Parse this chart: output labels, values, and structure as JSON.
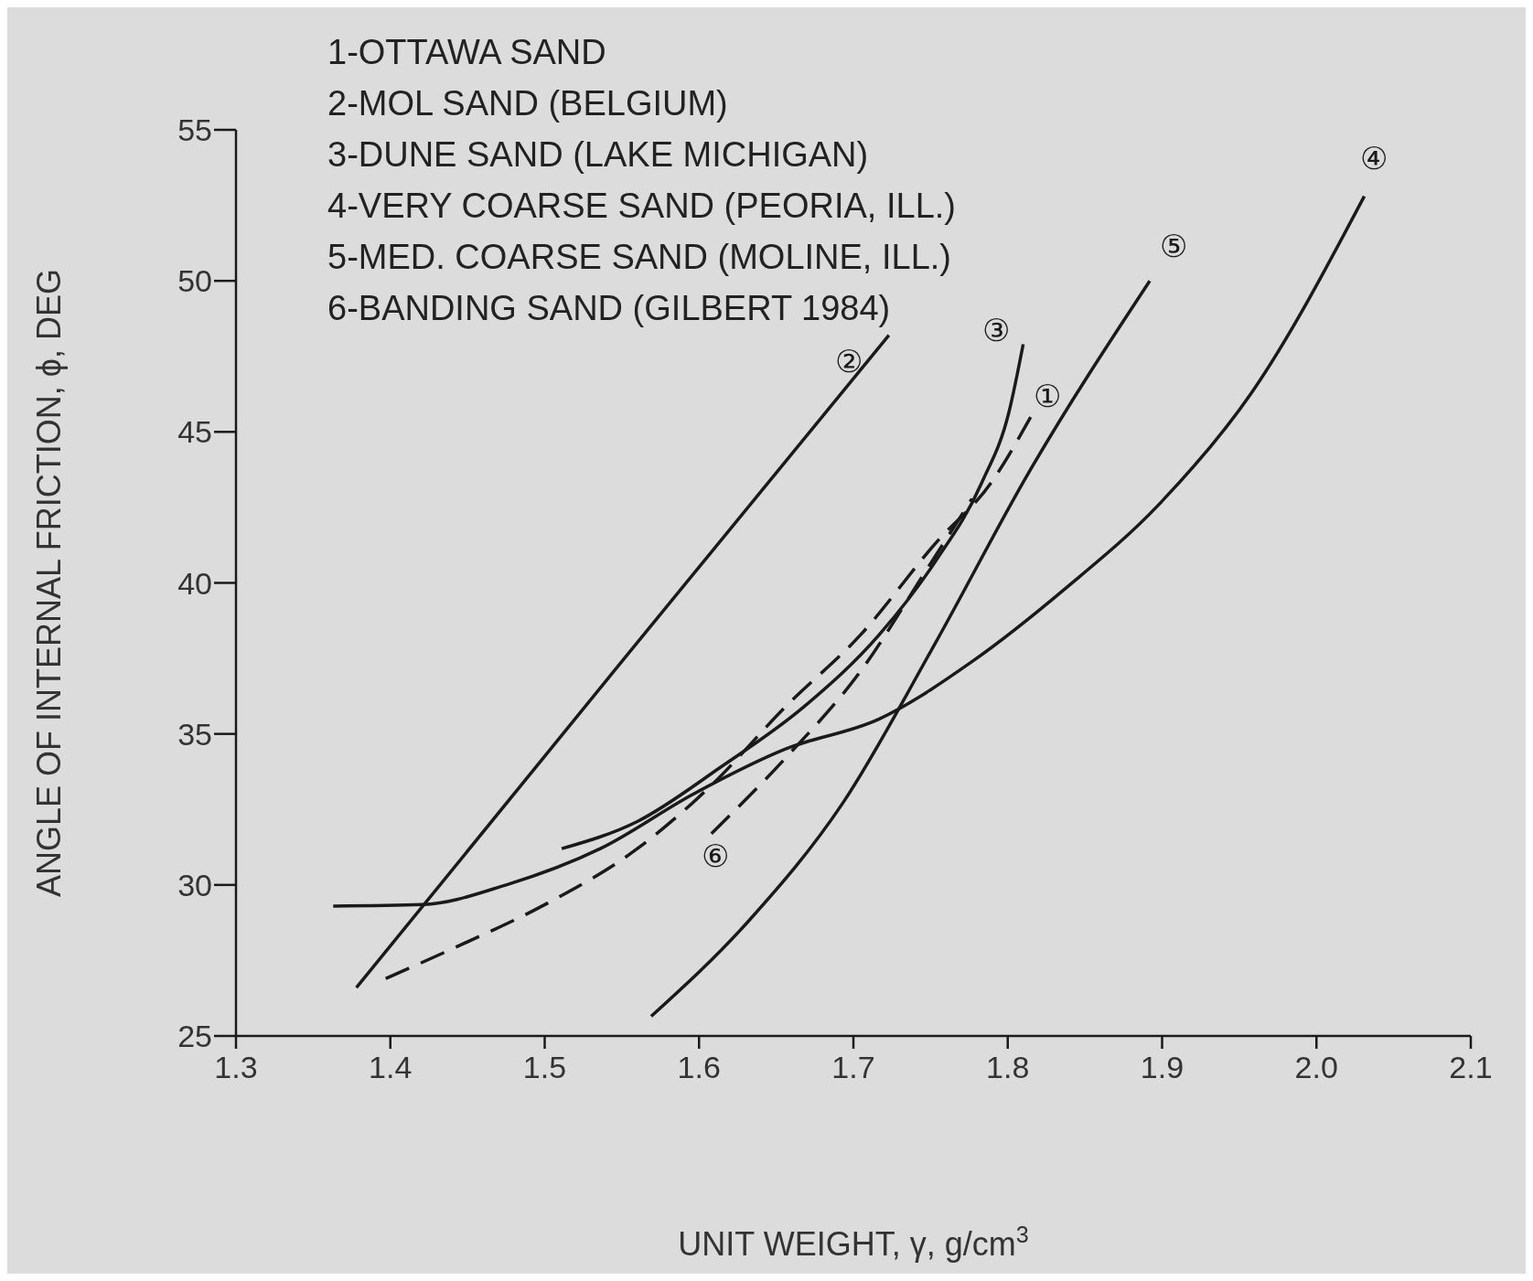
{
  "chart_data": {
    "type": "line",
    "xlabel": "UNIT WEIGHT, γ, g/cm$^{3}$",
    "ylabel": "ANGLE OF INTERNAL FRICTION, ϕ, DEG",
    "annotations": [
      "1-OTTAWA SAND",
      "2-MOL SAND (BELGIUM)",
      "3-DUNE SAND (LAKE MICHIGAN)",
      "4-VERY COARSE SAND (PEORIA, ILL.)",
      "5-MED. COARSE SAND (MOLINE, ILL.)",
      "6-BANDING SAND (GILBERT 1984)"
    ],
    "xlim": [
      1.3,
      2.1
    ],
    "xticks": [
      1.3,
      1.4,
      1.5,
      1.6,
      1.7,
      1.8,
      1.9,
      {
        "value": 2,
        "label": "2.0"
      },
      2.1
    ],
    "ylim": [
      25,
      55
    ],
    "yticks": [
      25,
      30,
      35,
      40,
      45,
      50,
      55
    ],
    "marker": "none",
    "series": [
      {
        "name": "①",
        "color": "#1a1a1a",
        "line_style": "dashed",
        "x": [
          1.397,
          1.445,
          1.502,
          1.56,
          1.608,
          1.656,
          1.705,
          1.753,
          1.789,
          1.816
        ],
        "values": [
          26.9,
          28.0,
          29.4,
          31.2,
          33.3,
          35.9,
          38.3,
          41.3,
          43.3,
          45.6
        ]
      },
      {
        "name": "②",
        "color": "#1a1a1a",
        "line_style": "solid",
        "x": [
          1.378,
          1.55,
          1.723
        ],
        "values": [
          26.6,
          37.4,
          48.2
        ]
      },
      {
        "name": "③",
        "color": "#1a1a1a",
        "line_style": "solid",
        "x": [
          1.511,
          1.56,
          1.614,
          1.668,
          1.717,
          1.753,
          1.783,
          1.801,
          1.81
        ],
        "values": [
          31.2,
          32.1,
          33.9,
          35.9,
          38.3,
          40.7,
          43.3,
          45.7,
          47.9
        ]
      },
      {
        "name": "④",
        "color": "#1a1a1a",
        "line_style": "solid",
        "x": [
          1.363,
          1.421,
          1.475,
          1.536,
          1.596,
          1.656,
          1.717,
          1.777,
          1.837,
          1.898,
          1.958,
          2.031
        ],
        "values": [
          29.3,
          29.35,
          30.0,
          31.2,
          33.0,
          34.5,
          35.5,
          37.4,
          39.8,
          42.6,
          46.3,
          52.8
        ]
      },
      {
        "name": "⑤",
        "color": "#1a1a1a",
        "line_style": "solid",
        "x": [
          1.569,
          1.632,
          1.693,
          1.753,
          1.813,
          1.892
        ],
        "values": [
          25.65,
          28.8,
          32.7,
          38.0,
          43.6,
          50.0
        ]
      },
      {
        "name": "⑥",
        "color": "#1a1a1a",
        "line_style": "dashed",
        "x": [
          1.608,
          1.656,
          1.705,
          1.747,
          1.777
        ],
        "values": [
          31.7,
          34.2,
          37.1,
          40.4,
          42.8
        ]
      }
    ]
  }
}
